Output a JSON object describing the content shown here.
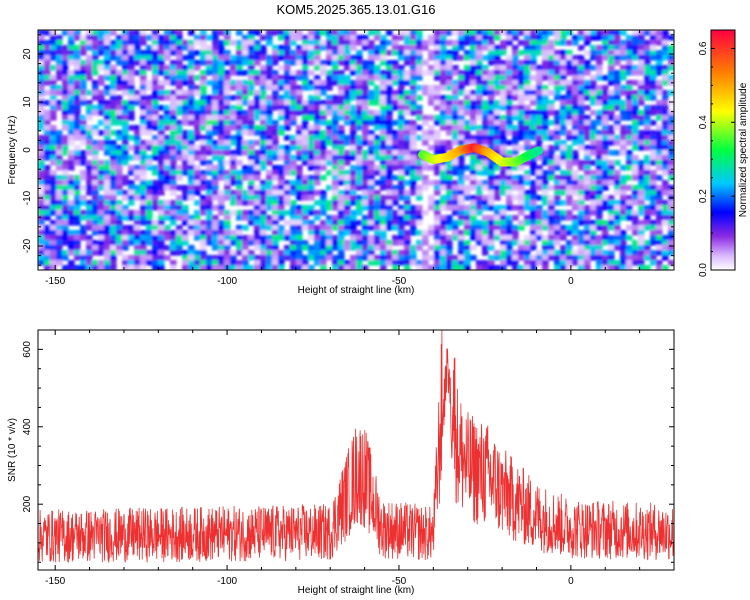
{
  "title": "KOM5.2025.365.13.01.G16",
  "chart_data": [
    {
      "type": "heatmap",
      "title": "KOM5.2025.365.13.01.G16",
      "xlabel": "Height of straight line (km)",
      "ylabel": "Frequency (Hz)",
      "xlim": [
        -155,
        30
      ],
      "ylim": [
        -25,
        25
      ],
      "xticks": [
        -150,
        -100,
        -50,
        0
      ],
      "yticks": [
        -20,
        -10,
        0,
        10,
        20
      ],
      "colorbar": {
        "label": "Normalized spectral amplitude",
        "range": [
          0.0,
          0.65
        ],
        "ticks": [
          0.0,
          0.2,
          0.4,
          0.6
        ],
        "colormap": "rainbow"
      },
      "signal_trace": {
        "x": [
          -43,
          -40,
          -36,
          -32,
          -28,
          -24,
          -20,
          -16,
          -12,
          -9
        ],
        "y": [
          -1,
          -2,
          -1.5,
          0,
          0.5,
          -0.5,
          -2.5,
          -2.5,
          -1,
          0
        ],
        "amplitude": [
          0.35,
          0.4,
          0.45,
          0.5,
          0.62,
          0.5,
          0.42,
          0.38,
          0.32,
          0.28
        ]
      },
      "background_amplitude_range": [
        0.0,
        0.3
      ],
      "grid": false
    },
    {
      "type": "line",
      "xlabel": "Height of straight line (km)",
      "ylabel": "SNR (10 * v/v)",
      "xlim": [
        -155,
        30
      ],
      "ylim": [
        30,
        650
      ],
      "xticks": [
        -150,
        -100,
        -50,
        0
      ],
      "yticks": [
        200,
        400,
        600
      ],
      "color": "#ee3030",
      "series_description_points": {
        "x": [
          -155,
          -110,
          -70,
          -62,
          -60,
          -55,
          -40,
          -36,
          -33,
          -30,
          -24,
          -20,
          -10,
          0,
          30
        ],
        "y": [
          110,
          115,
          120,
          270,
          260,
          130,
          115,
          630,
          330,
          280,
          260,
          220,
          160,
          130,
          120
        ]
      },
      "grid": false
    }
  ]
}
